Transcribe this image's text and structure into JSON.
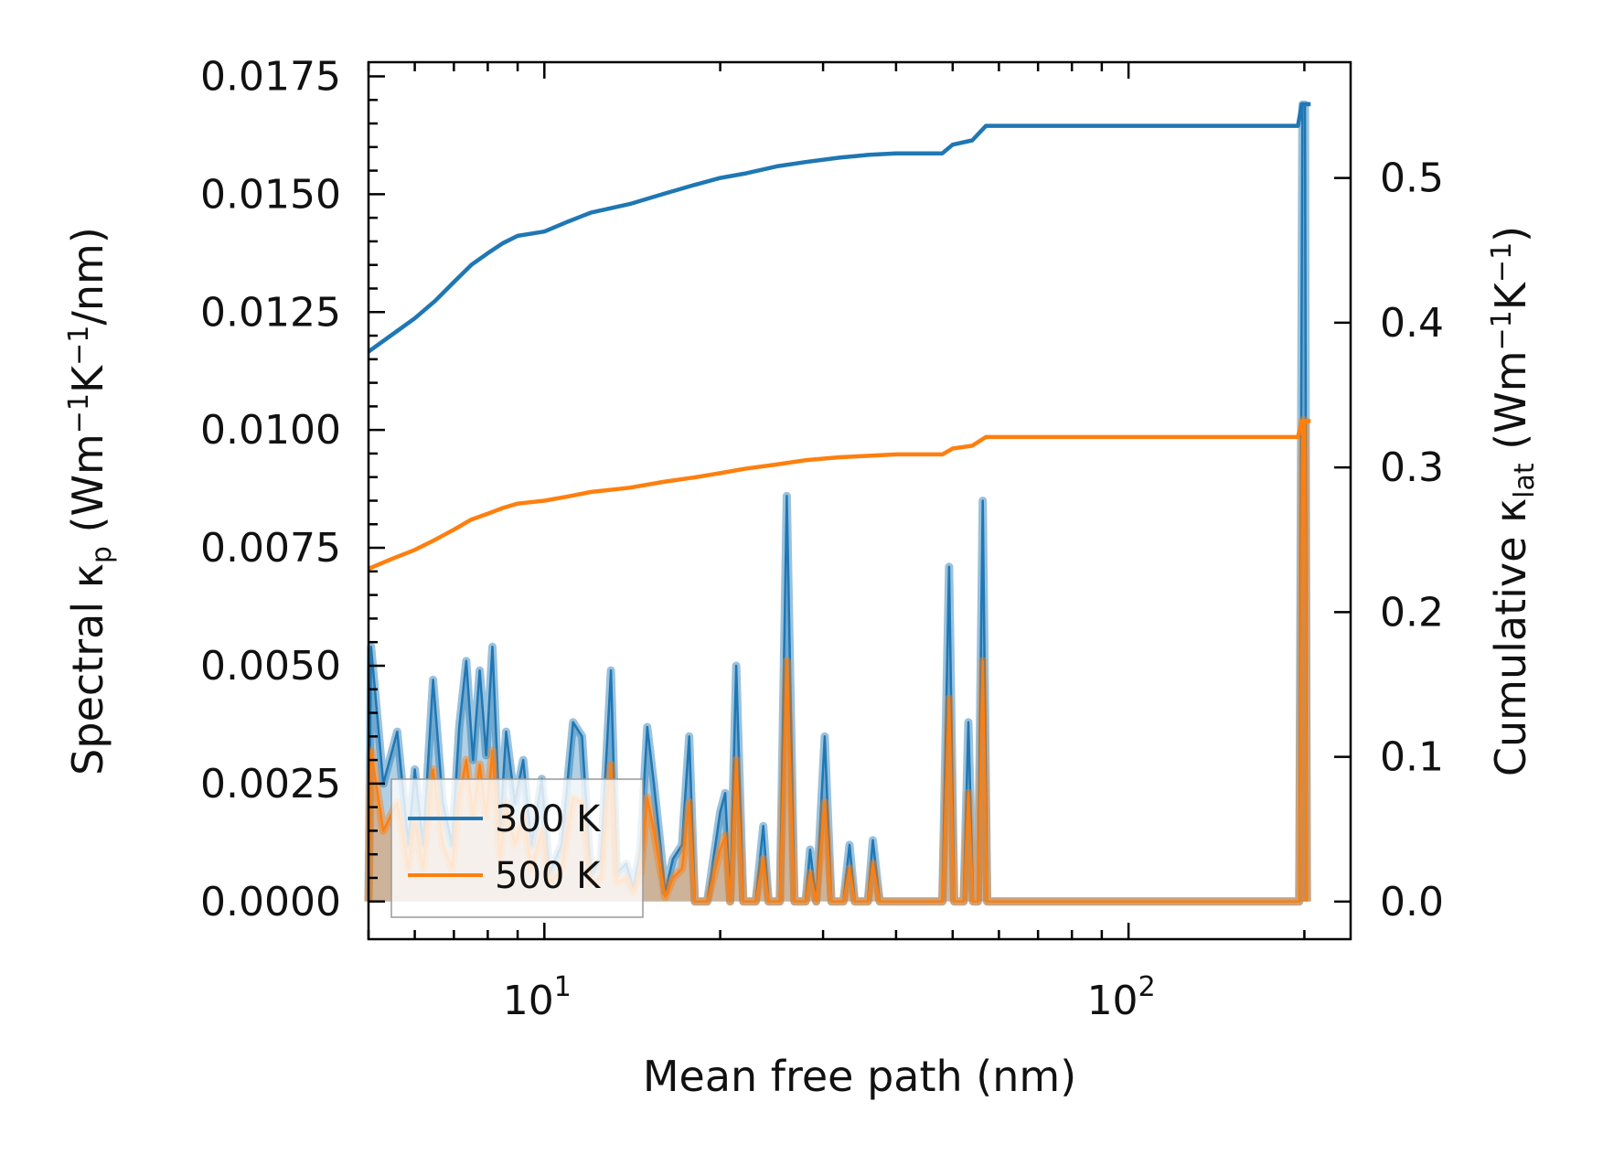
{
  "chart_data": {
    "type": "line",
    "x_scale": "log",
    "xlim": [
      5,
      240
    ],
    "xlabel": "Mean free path (nm)",
    "xticks": [
      10,
      100
    ],
    "xtick_labels": [
      {
        "base": "10",
        "exp": "1"
      },
      {
        "base": "10",
        "exp": "2"
      }
    ],
    "left_axis": {
      "label_parts": {
        "a": "Spectral ",
        "b": "κ",
        "c": "p",
        "d": " (Wm",
        "e": "−1",
        "f": "K",
        "g": "−1",
        "h": "/nm)"
      },
      "ylim": [
        -0.0008,
        0.0178
      ],
      "ticks": [
        0.0,
        0.0025,
        0.005,
        0.0075,
        0.01,
        0.0125,
        0.015,
        0.0175
      ],
      "tick_labels": [
        "0.0000",
        "0.0025",
        "0.0050",
        "0.0075",
        "0.0100",
        "0.0125",
        "0.0150",
        "0.0175"
      ]
    },
    "right_axis": {
      "label_parts": {
        "a": "Cumulative ",
        "b": "κ",
        "c": "lat",
        "d": " (Wm",
        "e": "−1",
        "f": "K",
        "g": "−1",
        "h": ")"
      },
      "ylim": [
        -0.026,
        0.58
      ],
      "ticks": [
        0.0,
        0.1,
        0.2,
        0.3,
        0.4,
        0.5
      ],
      "tick_labels": [
        "0.0",
        "0.1",
        "0.2",
        "0.3",
        "0.4",
        "0.5"
      ]
    },
    "legend": {
      "position": "lower-left",
      "entries": [
        "300 K",
        "500 K"
      ]
    },
    "colors": {
      "300 K": "#1f77b4",
      "500 K": "#ff7f0e"
    },
    "series": [
      {
        "name": "300 K",
        "axis": "right",
        "kind": "cumulative",
        "points": [
          [
            5.0,
            0.38
          ],
          [
            5.5,
            0.392
          ],
          [
            6.0,
            0.403
          ],
          [
            6.5,
            0.415
          ],
          [
            7.0,
            0.428
          ],
          [
            7.5,
            0.44
          ],
          [
            8.0,
            0.448
          ],
          [
            8.5,
            0.455
          ],
          [
            9.0,
            0.46
          ],
          [
            10.0,
            0.463
          ],
          [
            11.0,
            0.47
          ],
          [
            12.0,
            0.476
          ],
          [
            14.0,
            0.482
          ],
          [
            16.0,
            0.489
          ],
          [
            18.0,
            0.495
          ],
          [
            20.0,
            0.5
          ],
          [
            22.0,
            0.503
          ],
          [
            25.0,
            0.508
          ],
          [
            28.0,
            0.511
          ],
          [
            32.0,
            0.514
          ],
          [
            36.0,
            0.516
          ],
          [
            40.0,
            0.517
          ],
          [
            48.0,
            0.517
          ],
          [
            50.0,
            0.523
          ],
          [
            54.0,
            0.526
          ],
          [
            57.0,
            0.536
          ],
          [
            100.0,
            0.536
          ],
          [
            150.0,
            0.536
          ],
          [
            195.0,
            0.536
          ],
          [
            198.0,
            0.551
          ],
          [
            205.0,
            0.551
          ]
        ]
      },
      {
        "name": "500 K",
        "axis": "right",
        "kind": "cumulative",
        "points": [
          [
            5.0,
            0.23
          ],
          [
            5.5,
            0.237
          ],
          [
            6.0,
            0.243
          ],
          [
            6.5,
            0.25
          ],
          [
            7.0,
            0.257
          ],
          [
            7.5,
            0.264
          ],
          [
            8.0,
            0.268
          ],
          [
            8.5,
            0.272
          ],
          [
            9.0,
            0.275
          ],
          [
            10.0,
            0.277
          ],
          [
            11.0,
            0.28
          ],
          [
            12.0,
            0.283
          ],
          [
            14.0,
            0.286
          ],
          [
            16.0,
            0.29
          ],
          [
            18.0,
            0.293
          ],
          [
            20.0,
            0.296
          ],
          [
            22.0,
            0.299
          ],
          [
            25.0,
            0.302
          ],
          [
            28.0,
            0.305
          ],
          [
            32.0,
            0.307
          ],
          [
            36.0,
            0.308
          ],
          [
            40.0,
            0.309
          ],
          [
            48.0,
            0.309
          ],
          [
            50.0,
            0.313
          ],
          [
            54.0,
            0.315
          ],
          [
            57.0,
            0.321
          ],
          [
            100.0,
            0.321
          ],
          [
            150.0,
            0.321
          ],
          [
            195.0,
            0.321
          ],
          [
            198.0,
            0.332
          ],
          [
            205.0,
            0.332
          ]
        ]
      },
      {
        "name": "300 K",
        "axis": "left",
        "kind": "spectral",
        "points": [
          [
            5.0,
            0.0
          ],
          [
            5.05,
            0.0054
          ],
          [
            5.3,
            0.0025
          ],
          [
            5.6,
            0.0036
          ],
          [
            5.85,
            0.0012
          ],
          [
            6.0,
            0.0028
          ],
          [
            6.2,
            0.0012
          ],
          [
            6.45,
            0.0047
          ],
          [
            6.7,
            0.0021
          ],
          [
            6.95,
            0.0012
          ],
          [
            7.15,
            0.0037
          ],
          [
            7.35,
            0.0051
          ],
          [
            7.55,
            0.003
          ],
          [
            7.75,
            0.0049
          ],
          [
            7.95,
            0.0031
          ],
          [
            8.15,
            0.0054
          ],
          [
            8.4,
            0.0015
          ],
          [
            8.6,
            0.0036
          ],
          [
            8.9,
            0.0021
          ],
          [
            9.2,
            0.003
          ],
          [
            9.5,
            0.0012
          ],
          [
            9.9,
            0.0026
          ],
          [
            10.2,
            0.0006
          ],
          [
            10.7,
            0.0012
          ],
          [
            11.2,
            0.0038
          ],
          [
            11.6,
            0.0035
          ],
          [
            12.0,
            0.0006
          ],
          [
            12.5,
            0.0009
          ],
          [
            13.0,
            0.0049
          ],
          [
            13.3,
            0.0006
          ],
          [
            13.8,
            0.0008
          ],
          [
            14.2,
            0.0003
          ],
          [
            14.6,
            0.0011
          ],
          [
            15.0,
            0.0037
          ],
          [
            15.4,
            0.0025
          ],
          [
            15.8,
            0.0012
          ],
          [
            16.1,
            0.0002
          ],
          [
            16.6,
            0.0009
          ],
          [
            17.2,
            0.0012
          ],
          [
            17.7,
            0.0035
          ],
          [
            18.1,
            0.0
          ],
          [
            19.0,
            0.0
          ],
          [
            20.0,
            0.0019
          ],
          [
            20.4,
            0.0023
          ],
          [
            20.8,
            0.0
          ],
          [
            21.3,
            0.005
          ],
          [
            21.9,
            0.0
          ],
          [
            23.0,
            0.0
          ],
          [
            23.7,
            0.0016
          ],
          [
            24.2,
            0.0
          ],
          [
            25.3,
            0.0
          ],
          [
            26.0,
            0.0086
          ],
          [
            26.8,
            0.0
          ],
          [
            28.0,
            0.0
          ],
          [
            28.5,
            0.0011
          ],
          [
            29.2,
            0.0
          ],
          [
            30.2,
            0.0035
          ],
          [
            31.0,
            0.0
          ],
          [
            32.5,
            0.0
          ],
          [
            33.3,
            0.0012
          ],
          [
            34.0,
            0.0
          ],
          [
            35.8,
            0.0
          ],
          [
            36.5,
            0.0013
          ],
          [
            37.5,
            0.0
          ],
          [
            48.0,
            0.0
          ],
          [
            49.3,
            0.0071
          ],
          [
            50.3,
            0.0
          ],
          [
            52.2,
            0.0
          ],
          [
            53.2,
            0.0038
          ],
          [
            54.2,
            0.0
          ],
          [
            55.2,
            0.0
          ],
          [
            56.3,
            0.0085
          ],
          [
            57.3,
            0.0
          ],
          [
            190.0,
            0.0
          ],
          [
            196.0,
            0.0
          ],
          [
            198.5,
            0.0169
          ],
          [
            200.5,
            0.0169
          ],
          [
            202.0,
            0.0
          ]
        ]
      },
      {
        "name": "500 K",
        "axis": "left",
        "kind": "spectral",
        "points": [
          [
            5.0,
            0.0
          ],
          [
            5.05,
            0.0032
          ],
          [
            5.3,
            0.0015
          ],
          [
            5.6,
            0.0021
          ],
          [
            5.85,
            0.0007
          ],
          [
            6.0,
            0.0017
          ],
          [
            6.2,
            0.0007
          ],
          [
            6.45,
            0.0028
          ],
          [
            6.7,
            0.0012
          ],
          [
            6.95,
            0.0007
          ],
          [
            7.15,
            0.0022
          ],
          [
            7.35,
            0.003
          ],
          [
            7.55,
            0.0018
          ],
          [
            7.75,
            0.0029
          ],
          [
            7.95,
            0.0018
          ],
          [
            8.15,
            0.0032
          ],
          [
            8.4,
            0.0009
          ],
          [
            8.6,
            0.0021
          ],
          [
            8.9,
            0.0012
          ],
          [
            9.2,
            0.0018
          ],
          [
            9.5,
            0.0007
          ],
          [
            9.9,
            0.0015
          ],
          [
            10.2,
            0.0004
          ],
          [
            10.7,
            0.0007
          ],
          [
            11.2,
            0.0022
          ],
          [
            11.6,
            0.0021
          ],
          [
            12.0,
            0.0004
          ],
          [
            12.5,
            0.0005
          ],
          [
            13.0,
            0.0029
          ],
          [
            13.3,
            0.0004
          ],
          [
            13.8,
            0.0005
          ],
          [
            14.2,
            0.0002
          ],
          [
            14.6,
            0.0006
          ],
          [
            15.0,
            0.0022
          ],
          [
            15.4,
            0.0015
          ],
          [
            15.8,
            0.0007
          ],
          [
            16.1,
            0.0001
          ],
          [
            16.6,
            0.0005
          ],
          [
            17.2,
            0.0007
          ],
          [
            17.7,
            0.0021
          ],
          [
            18.1,
            0.0
          ],
          [
            19.0,
            0.0
          ],
          [
            20.0,
            0.0011
          ],
          [
            20.4,
            0.0014
          ],
          [
            20.8,
            0.0
          ],
          [
            21.3,
            0.003
          ],
          [
            21.9,
            0.0
          ],
          [
            23.0,
            0.0
          ],
          [
            23.7,
            0.0009
          ],
          [
            24.2,
            0.0
          ],
          [
            25.3,
            0.0
          ],
          [
            26.0,
            0.0051
          ],
          [
            26.8,
            0.0
          ],
          [
            28.0,
            0.0
          ],
          [
            28.5,
            0.0006
          ],
          [
            29.2,
            0.0
          ],
          [
            30.2,
            0.0021
          ],
          [
            31.0,
            0.0
          ],
          [
            32.5,
            0.0
          ],
          [
            33.3,
            0.0007
          ],
          [
            34.0,
            0.0
          ],
          [
            35.8,
            0.0
          ],
          [
            36.5,
            0.0008
          ],
          [
            37.5,
            0.0
          ],
          [
            48.0,
            0.0
          ],
          [
            49.3,
            0.0043
          ],
          [
            50.3,
            0.0
          ],
          [
            52.2,
            0.0
          ],
          [
            53.2,
            0.0023
          ],
          [
            54.2,
            0.0
          ],
          [
            55.2,
            0.0
          ],
          [
            56.3,
            0.0051
          ],
          [
            57.3,
            0.0
          ],
          [
            190.0,
            0.0
          ],
          [
            196.0,
            0.0
          ],
          [
            198.5,
            0.0102
          ],
          [
            200.5,
            0.0102
          ],
          [
            202.0,
            0.0
          ]
        ]
      }
    ]
  }
}
